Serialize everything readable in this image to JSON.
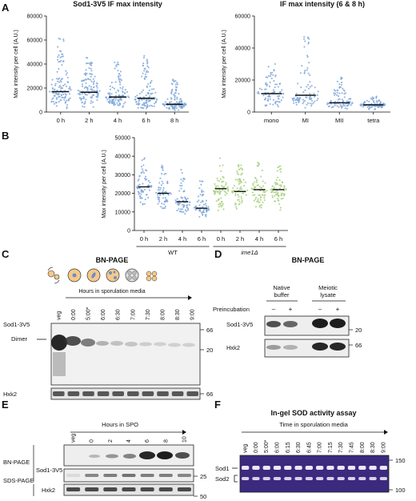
{
  "panels": {
    "A": "A",
    "B": "B",
    "C": "C",
    "D": "D",
    "E": "E",
    "F": "F"
  },
  "chart_data": [
    {
      "type": "scatter",
      "id": "A-left",
      "title": "Sod1-3V5 IF max intensity",
      "ylabel": "Max intensity per cell (A.U.)",
      "categories": [
        "0 h",
        "2 h",
        "4 h",
        "6 h",
        "8 h"
      ],
      "yticks": [
        "0",
        "20000",
        "40000",
        "60000",
        "80000"
      ],
      "ylim": [
        0,
        80000
      ],
      "medians": [
        17000,
        16500,
        12500,
        11500,
        6500
      ],
      "spread": [
        [
          3000,
          62000
        ],
        [
          3500,
          46000
        ],
        [
          2500,
          42000
        ],
        [
          2500,
          50000
        ],
        [
          1500,
          28000
        ]
      ],
      "color": "#7ea7d9"
    },
    {
      "type": "scatter",
      "id": "A-right",
      "title": "IF max intensity (6 & 8 h)",
      "ylabel": "Max intensity per cell (A.U.)",
      "categories": [
        "mono",
        "MI",
        "MII",
        "tetra"
      ],
      "yticks": [
        "0",
        "20000",
        "40000",
        "60000"
      ],
      "ylim": [
        0,
        60000
      ],
      "medians": [
        11500,
        10500,
        5800,
        4500
      ],
      "spread": [
        [
          2500,
          30000
        ],
        [
          2500,
          50000
        ],
        [
          1500,
          22000
        ],
        [
          1500,
          10000
        ]
      ],
      "color": "#7ea7d9"
    },
    {
      "type": "scatter",
      "id": "B",
      "ylabel": "Max intensity per cell (A.U.)",
      "categories": [
        "0 h",
        "2 h",
        "4 h",
        "6 h",
        "0 h",
        "2 h",
        "4 h",
        "6 h"
      ],
      "yticks": [
        "0",
        "10000",
        "20000",
        "30000",
        "40000",
        "50000"
      ],
      "ylim": [
        0,
        50000
      ],
      "medians": [
        23500,
        20000,
        15500,
        12000,
        22500,
        21000,
        22000,
        22000
      ],
      "spread": [
        [
          12000,
          40000
        ],
        [
          10000,
          36000
        ],
        [
          8000,
          33000
        ],
        [
          7000,
          27000
        ],
        [
          9000,
          39000
        ],
        [
          9000,
          37000
        ],
        [
          10000,
          38000
        ],
        [
          10000,
          37000
        ]
      ],
      "colors": [
        "#7ea7d9",
        "#7ea7d9",
        "#7ea7d9",
        "#7ea7d9",
        "#a6cf7a",
        "#a6cf7a",
        "#a6cf7a",
        "#a6cf7a"
      ],
      "groups": [
        "WT",
        "ime1Δ"
      ]
    }
  ],
  "blots": {
    "C": {
      "title": "BN-PAGE",
      "axis_label": "Hours in sporulation media",
      "lanes": [
        "veg",
        "0:00",
        "5:00*",
        "6:00",
        "6:30",
        "7:00",
        "7:30",
        "8:00",
        "8:30",
        "9:00"
      ],
      "row_labels": [
        "Sod1-3V5",
        "Dimer",
        "Hxk2"
      ],
      "markers": [
        "66",
        "20",
        "66"
      ]
    },
    "D": {
      "title": "BN-PAGE",
      "groups": [
        "Native buffer",
        "Meiotic lysate"
      ],
      "preincubation_label": "Preincubation",
      "signs": [
        "–",
        "+",
        "–",
        "+"
      ],
      "row_labels": [
        "Sod1-3V5",
        "Hxk2"
      ],
      "markers": [
        "20",
        "66"
      ]
    },
    "E": {
      "axis_label": "Hours in SPO",
      "lanes": [
        "veg",
        "0",
        "2",
        "4",
        "6",
        "8",
        "10"
      ],
      "row_labels": [
        "BN-PAGE",
        "Sod1-3V5",
        "SDS-PAGE",
        "Hxk2"
      ],
      "markers": [
        "25",
        "50"
      ]
    },
    "F": {
      "title": "In-gel SOD activity assay",
      "axis_label": "Time in sporulation media",
      "lanes": [
        "veg",
        "0:00",
        "5:00*",
        "6:00",
        "6:15",
        "6:30",
        "6:45",
        "7:00",
        "7:15",
        "7:30",
        "7:45",
        "8:00",
        "8:30",
        "9:00"
      ],
      "row_labels": [
        "Sod1",
        "Sod2"
      ],
      "markers": [
        "150",
        "100"
      ]
    }
  }
}
